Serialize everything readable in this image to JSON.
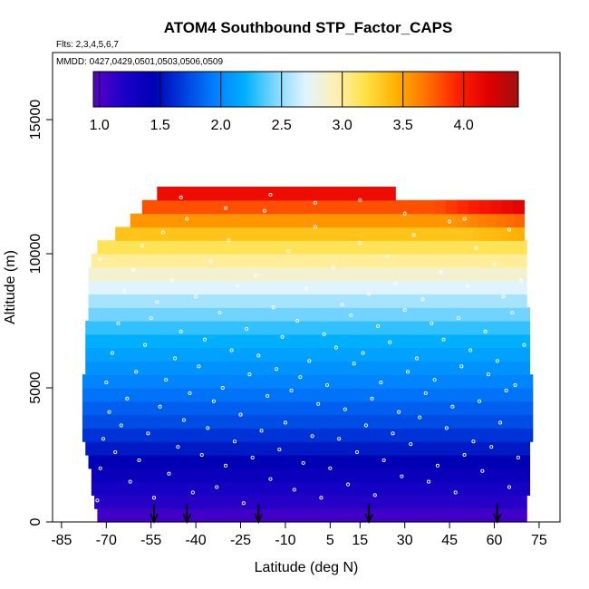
{
  "chart_data": {
    "type": "heatmap",
    "title": "ATOM4 Southbound STP_Factor_CAPS",
    "flights_label": "Flts: 2,3,4,5,6,7",
    "mmdd_label": "MMDD: 0427,0429,0501,0503,0506,0509",
    "xlabel": "Latitude (deg N)",
    "ylabel": "Altitude (m)",
    "xlim": [
      -88,
      82
    ],
    "ylim": [
      0,
      17500
    ],
    "x_ticks": [
      -85,
      -70,
      -55,
      -40,
      -25,
      -10,
      5,
      15,
      30,
      45,
      60,
      75
    ],
    "x_tick_labels": [
      "-85",
      "-70",
      "-55",
      "-40",
      "-25",
      "-10",
      "5",
      "15",
      "30",
      "45",
      "60",
      "75"
    ],
    "y_ticks": [
      0,
      5000,
      10000,
      15000
    ],
    "y_tick_labels": [
      "0",
      "5000",
      "10000",
      "15000"
    ],
    "colorbar": {
      "range": [
        0.95,
        4.45
      ],
      "ticks": [
        1.0,
        1.5,
        2.0,
        2.5,
        3.0,
        3.5,
        4.0
      ],
      "tick_labels": [
        "1.0",
        "1.5",
        "2.0",
        "2.5",
        "3.0",
        "3.5",
        "4.0"
      ],
      "colors": [
        "#5a00c8",
        "#1a00c8",
        "#0000b4",
        "#0040e0",
        "#0080ff",
        "#00b0ff",
        "#80d8ff",
        "#e0f4ff",
        "#fff0b0",
        "#ffe040",
        "#ffb000",
        "#ff7000",
        "#ff2000",
        "#e00000",
        "#a01010"
      ]
    },
    "layers": [
      {
        "alt": 250,
        "value": 1.05,
        "lat_min": -73,
        "lat_max": 71
      },
      {
        "alt": 750,
        "value": 1.15,
        "lat_min": -74,
        "lat_max": 71
      },
      {
        "alt": 1250,
        "value": 1.25,
        "lat_min": -75,
        "lat_max": 72
      },
      {
        "alt": 1750,
        "value": 1.35,
        "lat_min": -75,
        "lat_max": 72
      },
      {
        "alt": 2250,
        "value": 1.45,
        "lat_min": -76,
        "lat_max": 72
      },
      {
        "alt": 2750,
        "value": 1.55,
        "lat_min": -77,
        "lat_max": 72
      },
      {
        "alt": 3250,
        "value": 1.65,
        "lat_min": -78,
        "lat_max": 73
      },
      {
        "alt": 3750,
        "value": 1.75,
        "lat_min": -78,
        "lat_max": 73
      },
      {
        "alt": 4250,
        "value": 1.82,
        "lat_min": -78,
        "lat_max": 73
      },
      {
        "alt": 4750,
        "value": 1.9,
        "lat_min": -78,
        "lat_max": 73
      },
      {
        "alt": 5250,
        "value": 1.97,
        "lat_min": -78,
        "lat_max": 73
      },
      {
        "alt": 5750,
        "value": 2.05,
        "lat_min": -77,
        "lat_max": 72
      },
      {
        "alt": 6250,
        "value": 2.12,
        "lat_min": -77,
        "lat_max": 72
      },
      {
        "alt": 6750,
        "value": 2.2,
        "lat_min": -77,
        "lat_max": 72
      },
      {
        "alt": 7250,
        "value": 2.3,
        "lat_min": -77,
        "lat_max": 72
      },
      {
        "alt": 7750,
        "value": 2.42,
        "lat_min": -76,
        "lat_max": 72
      },
      {
        "alt": 8250,
        "value": 2.55,
        "lat_min": -76,
        "lat_max": 71
      },
      {
        "alt": 8750,
        "value": 2.7,
        "lat_min": -76,
        "lat_max": 71
      },
      {
        "alt": 9250,
        "value": 2.85,
        "lat_min": -76,
        "lat_max": 71
      },
      {
        "alt": 9750,
        "value": 3.0,
        "lat_min": -75,
        "lat_max": 71
      },
      {
        "alt": 10250,
        "value": 3.15,
        "lat_min": -73,
        "lat_max": 71
      },
      {
        "alt": 10750,
        "value": 3.35,
        "lat_min": -67,
        "lat_max": 70
      },
      {
        "alt": 11250,
        "value": 3.55,
        "lat_min": -62,
        "lat_max": 70
      },
      {
        "alt": 11750,
        "value": 3.8,
        "lat_min": -58,
        "lat_max": 70
      },
      {
        "alt": 12250,
        "value": 4.1,
        "lat_min": -53,
        "lat_max": 27
      }
    ],
    "upper_layer_gradients": [
      {
        "alt": 10750,
        "lat_from": 50,
        "value_to": 3.45
      },
      {
        "alt": 11250,
        "lat_from": 45,
        "value_to": 3.75
      },
      {
        "alt": 11750,
        "lat_from": 40,
        "value_to": 4.2
      }
    ],
    "sample_points": [
      [
        -73,
        800
      ],
      [
        -72,
        2000
      ],
      [
        -71,
        3100
      ],
      [
        -70,
        5200
      ],
      [
        -69,
        4100
      ],
      [
        -68,
        6300
      ],
      [
        -67,
        2600
      ],
      [
        -66,
        7400
      ],
      [
        -65,
        3600
      ],
      [
        -64,
        8600
      ],
      [
        -63,
        4600
      ],
      [
        -62,
        1500
      ],
      [
        -61,
        9400
      ],
      [
        -60,
        5600
      ],
      [
        -59,
        2300
      ],
      [
        -58,
        10300
      ],
      [
        -57,
        6600
      ],
      [
        -56,
        3300
      ],
      [
        -55,
        7600
      ],
      [
        -54,
        900
      ],
      [
        -53,
        8200
      ],
      [
        -52,
        4300
      ],
      [
        -51,
        10800
      ],
      [
        -50,
        5300
      ],
      [
        -49,
        1800
      ],
      [
        -48,
        9000
      ],
      [
        -47,
        6100
      ],
      [
        -46,
        2800
      ],
      [
        -45,
        7100
      ],
      [
        -44,
        3800
      ],
      [
        -43,
        11300
      ],
      [
        -42,
        4800
      ],
      [
        -41,
        1100
      ],
      [
        -40,
        8400
      ],
      [
        -39,
        5800
      ],
      [
        -38,
        2500
      ],
      [
        -37,
        6800
      ],
      [
        -36,
        3500
      ],
      [
        -35,
        9700
      ],
      [
        -34,
        4500
      ],
      [
        -33,
        1300
      ],
      [
        -32,
        7800
      ],
      [
        -31,
        5000
      ],
      [
        -30,
        2100
      ],
      [
        -29,
        10500
      ],
      [
        -28,
        6400
      ],
      [
        -27,
        3000
      ],
      [
        -26,
        8800
      ],
      [
        -25,
        4000
      ],
      [
        -24,
        700
      ],
      [
        -23,
        7200
      ],
      [
        -22,
        5500
      ],
      [
        -21,
        2400
      ],
      [
        -20,
        9200
      ],
      [
        -19,
        6200
      ],
      [
        -18,
        3400
      ],
      [
        -17,
        11600
      ],
      [
        -16,
        4700
      ],
      [
        -15,
        1600
      ],
      [
        -14,
        8000
      ],
      [
        -13,
        5700
      ],
      [
        -12,
        2700
      ],
      [
        -11,
        6900
      ],
      [
        -10,
        3700
      ],
      [
        -9,
        10100
      ],
      [
        -8,
        4900
      ],
      [
        -7,
        1200
      ],
      [
        -6,
        7500
      ],
      [
        -5,
        5400
      ],
      [
        -4,
        2200
      ],
      [
        -3,
        8700
      ],
      [
        -2,
        6000
      ],
      [
        -1,
        3200
      ],
      [
        0,
        11000
      ],
      [
        1,
        4400
      ],
      [
        2,
        900
      ],
      [
        3,
        7000
      ],
      [
        4,
        5100
      ],
      [
        5,
        2000
      ],
      [
        6,
        9500
      ],
      [
        7,
        6500
      ],
      [
        8,
        3100
      ],
      [
        9,
        8100
      ],
      [
        10,
        4200
      ],
      [
        11,
        1400
      ],
      [
        12,
        7700
      ],
      [
        13,
        5900
      ],
      [
        14,
        2600
      ],
      [
        15,
        10400
      ],
      [
        16,
        6300
      ],
      [
        17,
        3600
      ],
      [
        18,
        8500
      ],
      [
        19,
        4600
      ],
      [
        20,
        1000
      ],
      [
        21,
        7300
      ],
      [
        22,
        5200
      ],
      [
        23,
        2300
      ],
      [
        24,
        9900
      ],
      [
        25,
        6700
      ],
      [
        26,
        3300
      ],
      [
        27,
        8900
      ],
      [
        28,
        4100
      ],
      [
        29,
        1700
      ],
      [
        30,
        7900
      ],
      [
        31,
        5600
      ],
      [
        32,
        2900
      ],
      [
        33,
        10700
      ],
      [
        34,
        6100
      ],
      [
        35,
        3900
      ],
      [
        36,
        8300
      ],
      [
        37,
        4800
      ],
      [
        38,
        1500
      ],
      [
        39,
        7400
      ],
      [
        40,
        5300
      ],
      [
        41,
        2100
      ],
      [
        42,
        9300
      ],
      [
        43,
        6800
      ],
      [
        44,
        3500
      ],
      [
        45,
        11200
      ],
      [
        46,
        4300
      ],
      [
        47,
        1100
      ],
      [
        48,
        7600
      ],
      [
        49,
        5800
      ],
      [
        50,
        2500
      ],
      [
        51,
        8800
      ],
      [
        52,
        6400
      ],
      [
        53,
        3000
      ],
      [
        54,
        10200
      ],
      [
        55,
        4500
      ],
      [
        56,
        1900
      ],
      [
        57,
        7100
      ],
      [
        58,
        5500
      ],
      [
        59,
        2800
      ],
      [
        60,
        9600
      ],
      [
        61,
        6000
      ],
      [
        62,
        3700
      ],
      [
        63,
        8400
      ],
      [
        64,
        4900
      ],
      [
        65,
        1300
      ],
      [
        66,
        7800
      ],
      [
        67,
        5100
      ],
      [
        68,
        2400
      ],
      [
        69,
        9000
      ],
      [
        70,
        6600
      ],
      [
        -72,
        9800
      ],
      [
        -60,
        11800
      ],
      [
        -45,
        12100
      ],
      [
        -30,
        11700
      ],
      [
        -15,
        12200
      ],
      [
        0,
        11900
      ],
      [
        15,
        12000
      ],
      [
        30,
        11500
      ],
      [
        50,
        11300
      ],
      [
        65,
        10900
      ]
    ],
    "flight_markers_lat": [
      -54,
      -43,
      -19,
      18,
      61
    ]
  }
}
